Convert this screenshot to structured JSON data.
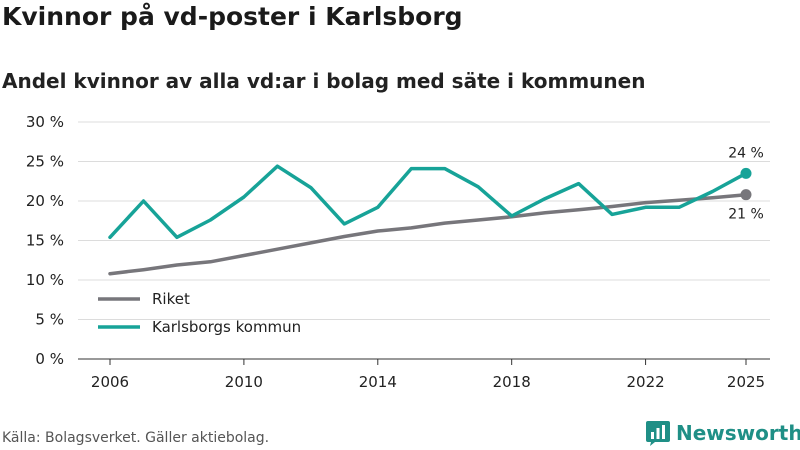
{
  "chart_data": {
    "type": "line",
    "title": "Kvinnor på vd-poster i Karlsborg",
    "subtitle": "Andel kvinnor av alla vd:ar i bolag med säte i kommunen",
    "xlabel": "",
    "ylabel": "",
    "xlim": [
      2006,
      2025
    ],
    "ylim": [
      0,
      30
    ],
    "x_ticks": [
      "2006",
      "2010",
      "2014",
      "2018",
      "2022",
      "2025"
    ],
    "y_ticks": [
      "0 %",
      "5 %",
      "10 %",
      "15 %",
      "20 %",
      "25 %",
      "30 %"
    ],
    "grid": true,
    "legend_position": "bottom-left",
    "x": [
      2006,
      2007,
      2008,
      2009,
      2010,
      2011,
      2012,
      2013,
      2014,
      2015,
      2016,
      2017,
      2018,
      2019,
      2020,
      2021,
      2022,
      2023,
      2024,
      2025
    ],
    "series": [
      {
        "name": "Riket",
        "color": "#77767b",
        "values": [
          10.8,
          11.3,
          11.9,
          12.3,
          13.1,
          13.9,
          14.7,
          15.5,
          16.2,
          16.6,
          17.2,
          17.6,
          18.0,
          18.5,
          18.9,
          19.3,
          19.8,
          20.1,
          20.4,
          20.8
        ]
      },
      {
        "name": "Karlsborgs kommun",
        "color": "#17a398",
        "values": [
          15.4,
          20.0,
          15.4,
          17.6,
          20.5,
          24.4,
          21.7,
          17.1,
          19.2,
          24.1,
          24.1,
          21.8,
          18.1,
          20.3,
          22.2,
          18.3,
          19.2,
          19.2,
          21.2,
          23.5
        ]
      }
    ],
    "end_labels": {
      "Riket": "21 %",
      "Karlsborgs kommun": "24 %"
    }
  },
  "source": "Källa: Bolagsverket. Gäller aktiebolag.",
  "brand": {
    "name": "Newsworthy",
    "icon": "newsworthy-logo-icon"
  }
}
